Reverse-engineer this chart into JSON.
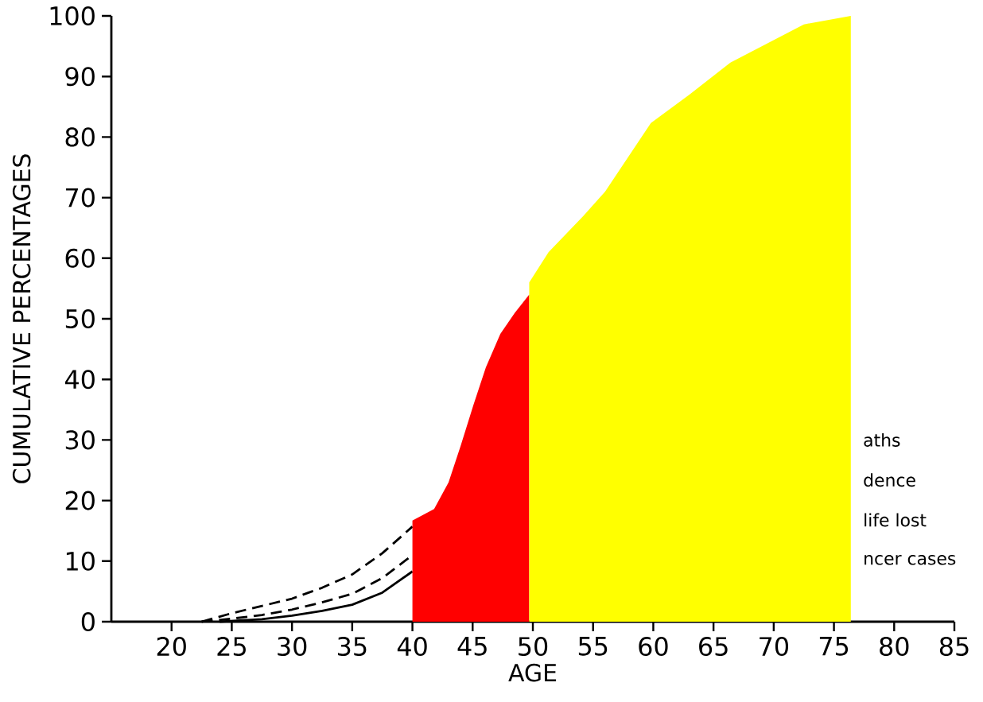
{
  "chart_data": {
    "type": "line",
    "xlabel": "AGE",
    "ylabel": "CUMULATIVE PERCENTAGES",
    "xlim": [
      15,
      85
    ],
    "ylim": [
      0,
      100
    ],
    "xticks": [
      20,
      25,
      30,
      35,
      40,
      45,
      50,
      55,
      60,
      65,
      70,
      75,
      80,
      85
    ],
    "yticks": [
      0,
      10,
      20,
      30,
      40,
      50,
      60,
      70,
      80,
      90,
      100
    ],
    "grid": false,
    "marker": "none",
    "series": [
      {
        "color": "#000000",
        "line_style": "dashed",
        "x": [
          22.5,
          25,
          27.5,
          30,
          32.5,
          35,
          37.5,
          40
        ],
        "values": [
          0,
          1.4,
          2.6,
          3.8,
          5.6,
          7.8,
          11.3,
          15.7
        ]
      },
      {
        "color": "#000000",
        "line_style": "dashed",
        "x": [
          22.5,
          25,
          27.5,
          30,
          32.5,
          35,
          37.5,
          40
        ],
        "values": [
          0,
          0.5,
          1.1,
          2,
          3.2,
          4.6,
          7.2,
          11
        ]
      },
      {
        "color": "#000000",
        "line_style": "solid",
        "x": [
          24,
          27.5,
          30,
          32.5,
          35,
          37.5,
          40
        ],
        "values": [
          0,
          0.4,
          1,
          1.8,
          2.8,
          4.8,
          8.3
        ]
      },
      {
        "type": "area",
        "color": "#ff0000",
        "x": [
          40,
          41.8,
          43,
          44,
          45.1,
          46.1,
          47.3,
          48.5,
          49.7
        ],
        "values": [
          16.7,
          18.6,
          23,
          29,
          36,
          42,
          47.5,
          51,
          54
        ]
      },
      {
        "type": "area",
        "color": "#ffff00",
        "x": [
          49.7,
          51.3,
          54.2,
          56,
          59.8,
          63,
          66.4,
          72.5,
          76.4
        ],
        "values": [
          56,
          61,
          67,
          71,
          82.3,
          87,
          92.3,
          98.6,
          100
        ]
      }
    ],
    "annotations": [
      "aths",
      "dence",
      "life lost",
      "ncer cases"
    ]
  }
}
